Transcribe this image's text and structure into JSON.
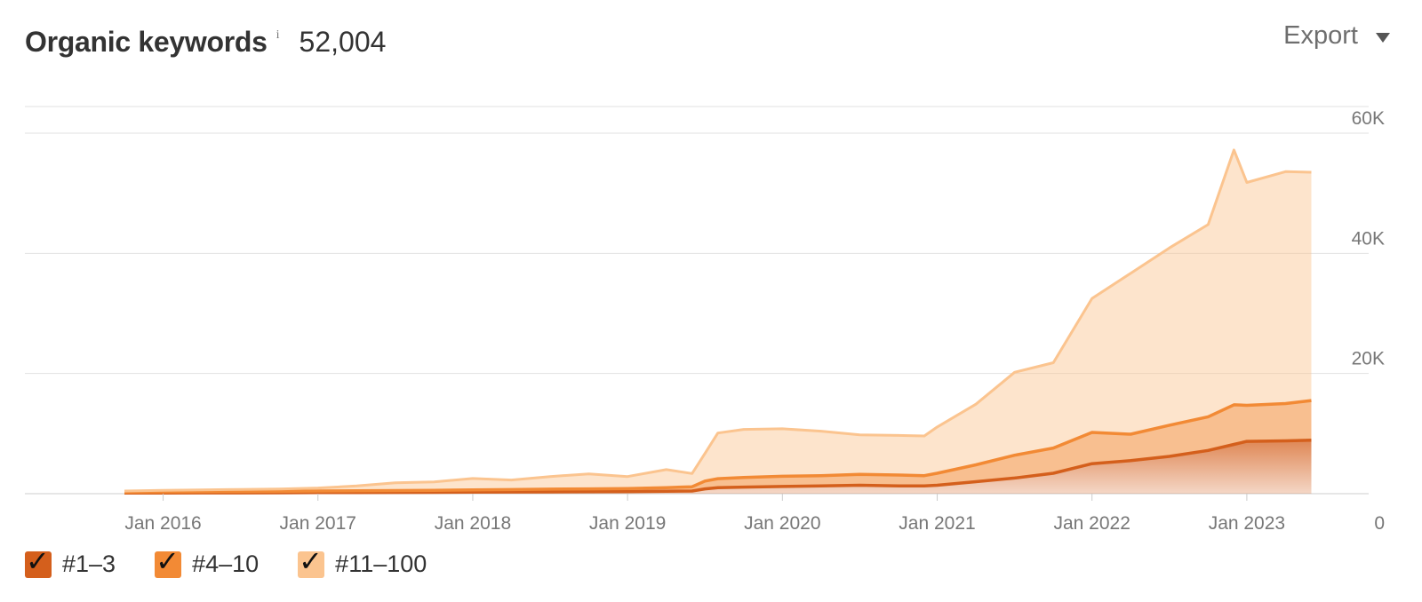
{
  "header": {
    "title": "Organic keywords",
    "info_icon": "i",
    "total": "52,004",
    "export_label": "Export"
  },
  "colors": {
    "top3": "#d45f1c",
    "top10": "#f28a35",
    "top100": "#fbc48f",
    "grid": "#e2e2e2",
    "axis_text": "#777777"
  },
  "chart_data": {
    "type": "area",
    "stacked": true,
    "y_axis_position": "right",
    "ylim": [
      0,
      60000
    ],
    "y_ticks": [
      0,
      20000,
      40000,
      60000
    ],
    "y_tick_labels": [
      "0",
      "20K",
      "40K",
      "60K"
    ],
    "x_ticks": [
      "2016-01",
      "2017-01",
      "2018-01",
      "2019-01",
      "2020-01",
      "2021-01",
      "2022-01",
      "2023-01"
    ],
    "x_tick_labels": [
      "Jan 2016",
      "Jan 2017",
      "Jan 2018",
      "Jan 2019",
      "Jan 2020",
      "Jan 2021",
      "Jan 2022",
      "Jan 2023"
    ],
    "x_range": [
      "2015-10",
      "2023-07"
    ],
    "grid": true,
    "legend_position": "bottom-left",
    "x": [
      "2015-10",
      "2016-01",
      "2016-04",
      "2016-07",
      "2016-10",
      "2017-01",
      "2017-04",
      "2017-07",
      "2017-10",
      "2018-01",
      "2018-04",
      "2018-07",
      "2018-10",
      "2019-01",
      "2019-04",
      "2019-06",
      "2019-07",
      "2019-08",
      "2019-10",
      "2020-01",
      "2020-04",
      "2020-07",
      "2020-10",
      "2020-12",
      "2021-01",
      "2021-04",
      "2021-07",
      "2021-10",
      "2022-01",
      "2022-04",
      "2022-07",
      "2022-10",
      "2022-12",
      "2023-01",
      "2023-04",
      "2023-06"
    ],
    "series": [
      {
        "name": "#1–3",
        "values": [
          100,
          120,
          130,
          140,
          150,
          170,
          190,
          200,
          220,
          250,
          280,
          300,
          320,
          350,
          400,
          450,
          800,
          1000,
          1100,
          1200,
          1300,
          1400,
          1300,
          1300,
          1400,
          2000,
          2600,
          3400,
          5000,
          5500,
          6200,
          7200,
          8200,
          8700,
          8800,
          8900
        ]
      },
      {
        "name": "#4–10",
        "values": [
          150,
          180,
          200,
          220,
          240,
          280,
          300,
          320,
          340,
          380,
          400,
          450,
          480,
          500,
          600,
          700,
          1300,
          1500,
          1600,
          1700,
          1700,
          1800,
          1800,
          1700,
          2000,
          2800,
          3800,
          4200,
          5200,
          4400,
          5200,
          5600,
          6600,
          6000,
          6200,
          6600
        ]
      },
      {
        "name": "#11–100",
        "values": [
          200,
          260,
          300,
          350,
          400,
          500,
          800,
          1300,
          1400,
          1900,
          1600,
          2100,
          2500,
          2000,
          3000,
          2200,
          4600,
          7600,
          8000,
          7900,
          7400,
          6600,
          6600,
          6600,
          7700,
          10100,
          13800,
          14200,
          22300,
          26800,
          29500,
          32000,
          42400,
          37100,
          38600,
          38000
        ]
      }
    ]
  },
  "legend": [
    {
      "label": "#1–3",
      "check": "✓"
    },
    {
      "label": "#4–10",
      "check": "✓"
    },
    {
      "label": "#11–100",
      "check": "✓"
    }
  ]
}
